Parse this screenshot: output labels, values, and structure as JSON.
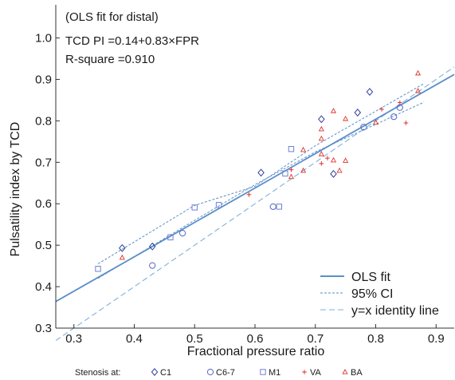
{
  "chart_data": {
    "type": "scatter",
    "annotations": [
      "(OLS fit for distal)",
      "TCD PI =0.14+0.83×FPR",
      "R-square =0.910"
    ],
    "xlabel": "Fractional pressure ratio",
    "ylabel": "Pulsatility index by TCD",
    "xlim": [
      0.27,
      0.93
    ],
    "ylim": [
      0.3,
      1.08
    ],
    "xticks": [
      0.3,
      0.4,
      0.5,
      0.6,
      0.7,
      0.8,
      0.9
    ],
    "xtick_labels": [
      "0.3",
      "0.4",
      "0.5",
      "0.6",
      "0.7",
      "0.8",
      "0.9"
    ],
    "yticks": [
      0.3,
      0.4,
      0.5,
      0.6,
      0.7,
      0.8,
      0.9,
      1.0
    ],
    "ytick_labels": [
      "0.3",
      "0.4",
      "0.5",
      "0.6",
      "0.7",
      "0.8",
      "0.9",
      "1.0"
    ],
    "grid": false,
    "legend_position": "bottom-right",
    "line_legend": [
      "OLS fit",
      "95% CI",
      "y=x identity line"
    ],
    "stenosis_label": "Stenosis at:",
    "lines": {
      "ols_fit": {
        "intercept": 0.14,
        "slope": 0.83,
        "x_range": [
          0.27,
          0.93
        ],
        "color": "#5b8fc9"
      },
      "ci_upper": [
        [
          0.34,
          0.455
        ],
        [
          0.5,
          0.596
        ],
        [
          0.6,
          0.642
        ],
        [
          0.7,
          0.74
        ],
        [
          0.88,
          0.89
        ]
      ],
      "ci_lower": [
        [
          0.34,
          0.42
        ],
        [
          0.5,
          0.56
        ],
        [
          0.6,
          0.646
        ],
        [
          0.7,
          0.725
        ],
        [
          0.88,
          0.845
        ]
      ],
      "identity": {
        "x_range": [
          0.27,
          0.93
        ],
        "color": "#7fb0dd"
      }
    },
    "series": [
      {
        "name": "C1",
        "marker": "diamond",
        "color": "#2e3f9c",
        "points": [
          [
            0.38,
            0.493
          ],
          [
            0.43,
            0.497
          ],
          [
            0.61,
            0.675
          ],
          [
            0.71,
            0.804
          ],
          [
            0.73,
            0.672
          ],
          [
            0.77,
            0.82
          ],
          [
            0.79,
            0.87
          ]
        ]
      },
      {
        "name": "C6-7",
        "marker": "circle",
        "color": "#5565c8",
        "points": [
          [
            0.43,
            0.451
          ],
          [
            0.48,
            0.529
          ],
          [
            0.63,
            0.593
          ],
          [
            0.78,
            0.785
          ],
          [
            0.83,
            0.81
          ],
          [
            0.84,
            0.832
          ]
        ]
      },
      {
        "name": "M1",
        "marker": "square",
        "color": "#6f80d8",
        "points": [
          [
            0.34,
            0.443
          ],
          [
            0.46,
            0.519
          ],
          [
            0.5,
            0.591
          ],
          [
            0.54,
            0.597
          ],
          [
            0.64,
            0.593
          ],
          [
            0.65,
            0.673
          ],
          [
            0.66,
            0.732
          ]
        ]
      },
      {
        "name": "VA",
        "marker": "plus",
        "color": "#e0342b",
        "points": [
          [
            0.59,
            0.622
          ],
          [
            0.66,
            0.682
          ],
          [
            0.71,
            0.697
          ],
          [
            0.72,
            0.71
          ],
          [
            0.81,
            0.828
          ],
          [
            0.84,
            0.844
          ],
          [
            0.85,
            0.795
          ]
        ]
      },
      {
        "name": "BA",
        "marker": "triangle",
        "color": "#e0342b",
        "points": [
          [
            0.38,
            0.47
          ],
          [
            0.66,
            0.665
          ],
          [
            0.68,
            0.68
          ],
          [
            0.68,
            0.73
          ],
          [
            0.71,
            0.757
          ],
          [
            0.71,
            0.78
          ],
          [
            0.71,
            0.72
          ],
          [
            0.73,
            0.824
          ],
          [
            0.73,
            0.705
          ],
          [
            0.74,
            0.68
          ],
          [
            0.75,
            0.805
          ],
          [
            0.75,
            0.704
          ],
          [
            0.8,
            0.796
          ],
          [
            0.87,
            0.915
          ],
          [
            0.87,
            0.872
          ]
        ]
      }
    ]
  }
}
